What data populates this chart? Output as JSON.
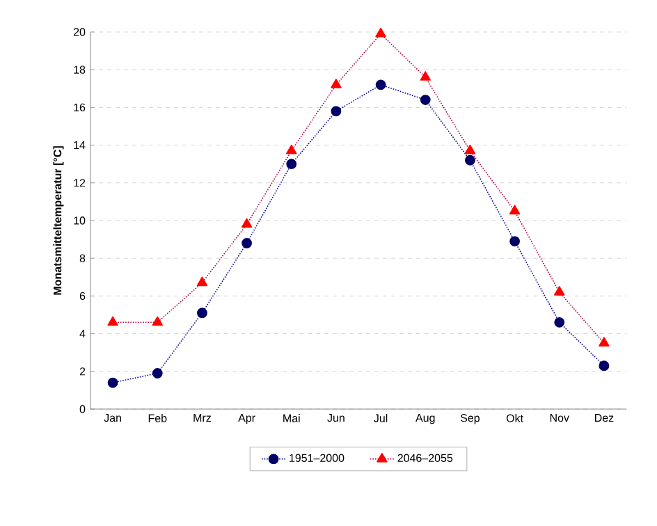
{
  "chart_data": {
    "type": "line",
    "ylabel": "Monatsmitteltemperatur [°C]",
    "categories": [
      "Jan",
      "Feb",
      "Mrz",
      "Apr",
      "Mai",
      "Jun",
      "Jul",
      "Aug",
      "Sep",
      "Okt",
      "Nov",
      "Dez"
    ],
    "series": [
      {
        "name": "1951–2000",
        "color": "#000066",
        "marker": "circle",
        "values": [
          1.4,
          1.9,
          5.1,
          8.8,
          13.0,
          15.8,
          17.2,
          16.4,
          13.2,
          8.9,
          4.6,
          2.3
        ]
      },
      {
        "name": "2046–2055",
        "color": "#ff0000",
        "marker": "triangle",
        "values": [
          4.6,
          4.6,
          6.7,
          9.8,
          13.7,
          17.2,
          19.9,
          17.6,
          13.7,
          10.5,
          6.2,
          3.5
        ]
      }
    ],
    "ylim": [
      0,
      20
    ],
    "yticks": [
      0,
      2,
      4,
      6,
      8,
      10,
      12,
      14,
      16,
      18,
      20
    ],
    "grid": "y",
    "legend": "bottom",
    "line_style": "dotted"
  }
}
